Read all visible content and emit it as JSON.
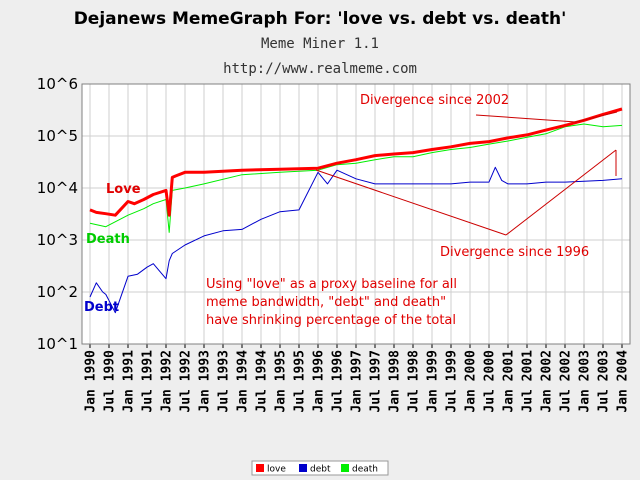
{
  "chart_data": {
    "type": "line",
    "title": "Dejanews MemeGraph For: 'love vs. debt vs. death'",
    "subtitle": "Meme Miner 1.1",
    "url": "http://www.realmeme.com",
    "y_scale": "log",
    "ylim": [
      10,
      1000000
    ],
    "y_ticks": [
      "10^6",
      "10^5",
      "10^4",
      "10^3",
      "10^2",
      "10^1"
    ],
    "x_ticks": [
      "Jan 1990",
      "Jul 1990",
      "Jan 1991",
      "Jul 1991",
      "Jan 1992",
      "Jul 1992",
      "Jan 1993",
      "Jul 1993",
      "Jan 1994",
      "Jul 1994",
      "Jan 1995",
      "Jul 1995",
      "Jan 1996",
      "Jul 1996",
      "Jan 1997",
      "Jul 1997",
      "Jan 1998",
      "Jul 1998",
      "Jan 1999",
      "Jul 1999",
      "Jan 2000",
      "Jul 2000",
      "Jan 2001",
      "Jul 2001",
      "Jan 2002",
      "Jul 2002",
      "Jan 2003",
      "Jul 2003",
      "Jan 2004"
    ],
    "x_range": [
      "Jan 1990",
      "Jan 2004"
    ],
    "grid": true,
    "legend_position": "bottom",
    "colors": {
      "love": "#ff0000",
      "debt": "#0000cc",
      "death": "#00ee00"
    },
    "series": [
      {
        "name": "love",
        "x": [
          "1990-01",
          "1990-03",
          "1990-06",
          "1990-09",
          "1991-01",
          "1991-03",
          "1991-06",
          "1991-09",
          "1992-01",
          "1992-02",
          "1992-03",
          "1992-04",
          "1992-07",
          "1993-01",
          "1994-01",
          "1995-01",
          "1996-01",
          "1996-07",
          "1997-01",
          "1997-07",
          "1998-01",
          "1998-07",
          "1999-01",
          "1999-07",
          "2000-01",
          "2000-07",
          "2001-01",
          "2001-07",
          "2002-01",
          "2002-07",
          "2003-01",
          "2003-07",
          "2004-01"
        ],
        "values": [
          3800,
          3400,
          3200,
          3000,
          5500,
          5000,
          6000,
          7500,
          9000,
          3000,
          16000,
          17000,
          20000,
          20000,
          22000,
          23000,
          24000,
          30000,
          35000,
          42000,
          45000,
          48000,
          55000,
          62000,
          72000,
          78000,
          92000,
          105000,
          130000,
          160000,
          200000,
          260000,
          330000
        ]
      },
      {
        "name": "debt",
        "x": [
          "1990-01",
          "1990-03",
          "1990-05",
          "1990-06",
          "1990-09",
          "1991-01",
          "1991-04",
          "1991-07",
          "1991-09",
          "1992-01",
          "1992-02",
          "1992-03",
          "1992-07",
          "1993-01",
          "1993-07",
          "1994-01",
          "1994-07",
          "1995-01",
          "1995-07",
          "1996-01",
          "1996-04",
          "1996-07",
          "1997-01",
          "1997-07",
          "1998-01",
          "1998-07",
          "1999-01",
          "1999-07",
          "2000-01",
          "2000-07",
          "2000-09",
          "2000-11",
          "2001-01",
          "2001-07",
          "2002-01",
          "2002-07",
          "2003-01",
          "2003-07",
          "2004-01"
        ],
        "values": [
          80,
          150,
          100,
          90,
          40,
          200,
          220,
          300,
          350,
          180,
          400,
          550,
          800,
          1200,
          1500,
          1600,
          2500,
          3500,
          3800,
          20000,
          12000,
          22000,
          15000,
          12000,
          12000,
          12000,
          12000,
          12000,
          13000,
          13000,
          25000,
          14000,
          12000,
          12000,
          13000,
          13000,
          13500,
          14000,
          15000
        ]
      },
      {
        "name": "death",
        "x": [
          "1990-01",
          "1990-06",
          "1991-01",
          "1991-06",
          "1991-09",
          "1992-01",
          "1992-02",
          "1992-03",
          "1992-07",
          "1993-01",
          "1994-01",
          "1995-01",
          "1996-01",
          "1996-07",
          "1997-01",
          "1997-07",
          "1998-01",
          "1998-07",
          "1999-01",
          "1999-07",
          "2000-01",
          "2000-07",
          "2001-01",
          "2001-07",
          "2002-01",
          "2002-07",
          "2003-01",
          "2003-07",
          "2004-01"
        ],
        "values": [
          2100,
          1800,
          3000,
          4000,
          5000,
          6000,
          1400,
          9000,
          10000,
          12000,
          18000,
          20000,
          22000,
          28000,
          30000,
          35000,
          40000,
          40000,
          48000,
          55000,
          60000,
          70000,
          80000,
          95000,
          110000,
          150000,
          170000,
          150000,
          160000
        ]
      }
    ],
    "annotations": {
      "divergence_2002": "Divergence since 2002",
      "divergence_1996": "Divergence since 1996",
      "note_line1": "Using \"love\" as a proxy baseline for all",
      "note_line2": "meme bandwidth, \"debt\" and death\"",
      "note_line3": "have shrinking percentage of the total",
      "label_love": "Love",
      "label_death": "Death",
      "label_debt": "Debt"
    },
    "legend": [
      {
        "name": "love",
        "label": "love"
      },
      {
        "name": "debt",
        "label": "debt"
      },
      {
        "name": "death",
        "label": "death"
      }
    ]
  }
}
